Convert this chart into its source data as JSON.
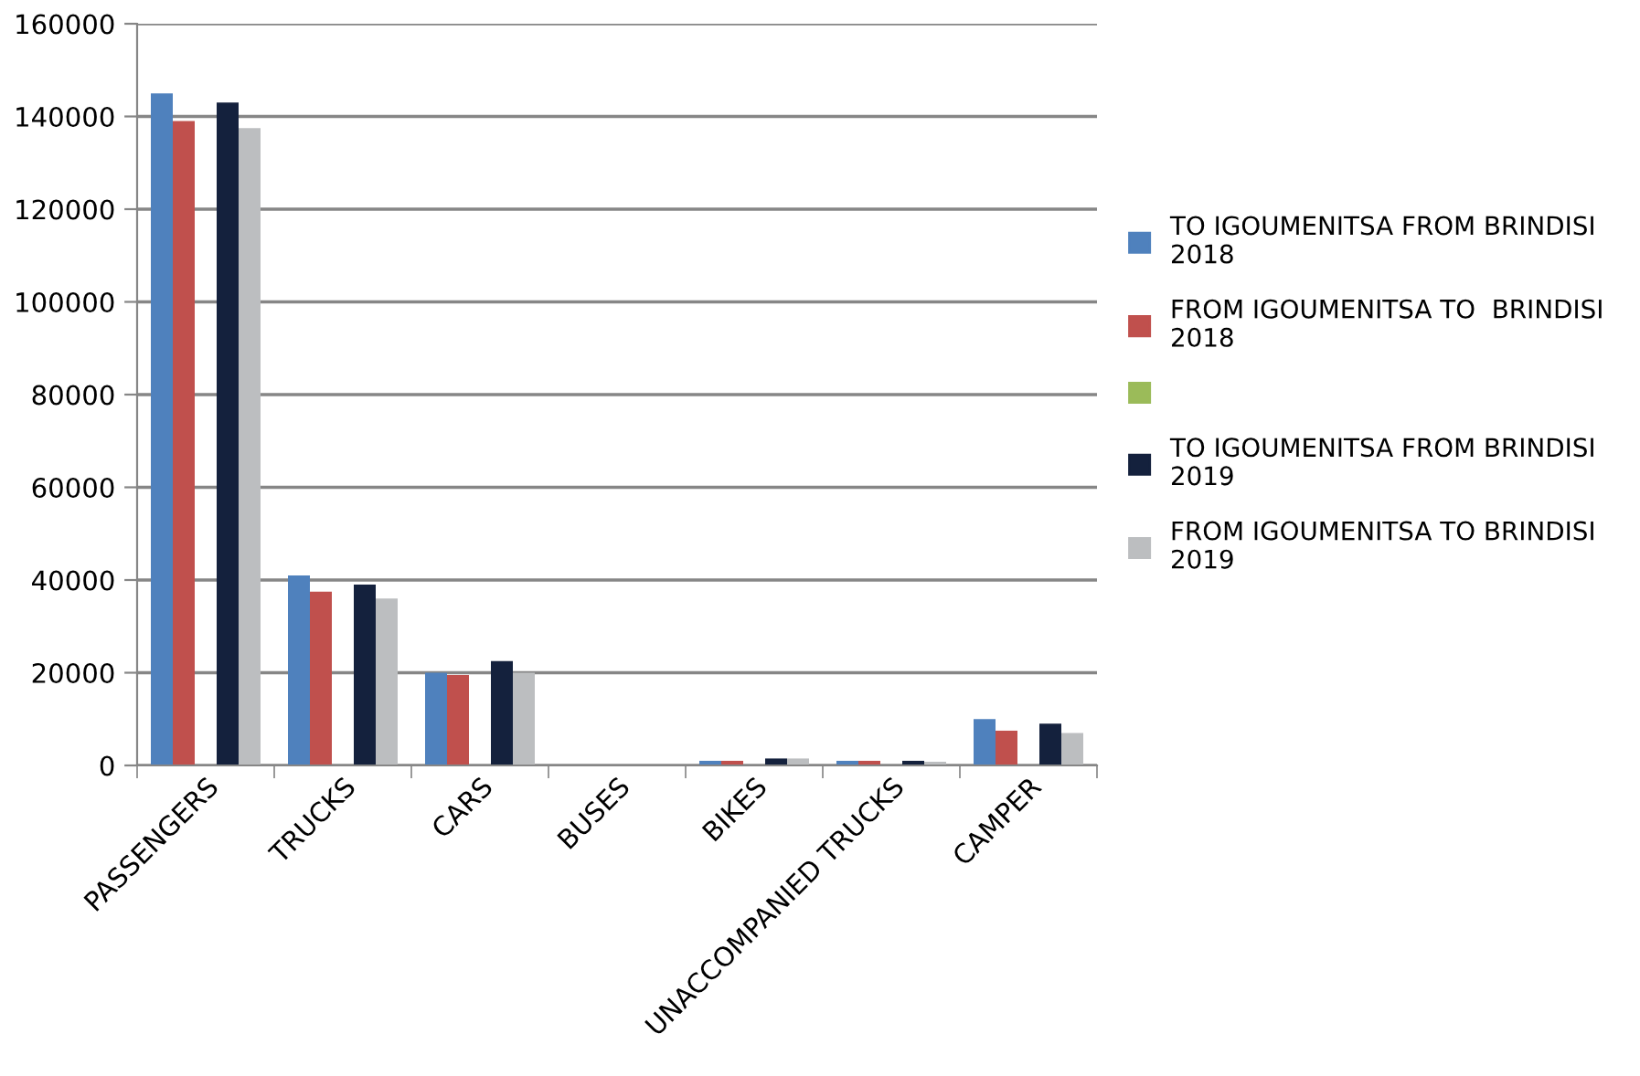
{
  "chart_data": {
    "type": "bar",
    "categories": [
      "PASSENGERS",
      "TRUCKS",
      "CARS",
      "BUSES",
      "BIKES",
      "UNACCOMPANIED TRUCKS",
      "CAMPER"
    ],
    "series": [
      {
        "name": "TO IGOUMENITSA FROM BRINDISI\n2018",
        "color": "#4f81bd",
        "values": [
          145000,
          41000,
          20000,
          0,
          1000,
          1000,
          10000
        ]
      },
      {
        "name": "FROM IGOUMENITSA TO  BRINDISI\n2018",
        "color": "#c0504d",
        "values": [
          139000,
          37500,
          19500,
          0,
          1000,
          1000,
          7500
        ]
      },
      {
        "color": "#9bbb59",
        "values": [
          null,
          null,
          null,
          null,
          null,
          null,
          null
        ]
      },
      {
        "name": "TO IGOUMENITSA FROM BRINDISI\n2019",
        "color": "#14213d",
        "values": [
          143000,
          39000,
          22500,
          0,
          1500,
          1000,
          9000
        ]
      },
      {
        "name": "FROM IGOUMENITSA TO BRINDISI\n2019",
        "color": "#bcbec0",
        "values": [
          137500,
          36000,
          20000,
          0,
          1500,
          800,
          7000
        ]
      }
    ],
    "ylim": [
      0,
      160000
    ],
    "yticks": [
      0,
      20000,
      40000,
      60000,
      80000,
      100000,
      120000,
      140000,
      160000
    ],
    "grid": "y",
    "legend": "right"
  }
}
